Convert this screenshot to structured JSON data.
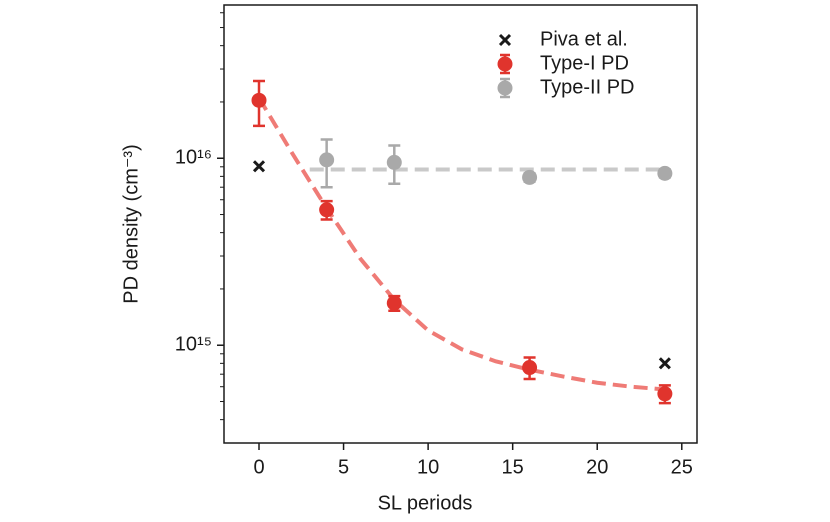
{
  "chart_data": {
    "type": "scatter",
    "xlabel": "SL periods",
    "ylabel": "PD density (cm⁻³)",
    "xlim": [
      -2.07,
      25.9
    ],
    "xticks": [
      0,
      5,
      10,
      15,
      20,
      25
    ],
    "ylim": [
      300000000000000.0,
      6.6e+16
    ],
    "yscale": "log",
    "yticks": [
      {
        "value": 1000000000000000.0,
        "label": "10¹⁵"
      },
      {
        "value": 1e+16,
        "label": "10¹⁶"
      }
    ],
    "legend": "upper right",
    "series": [
      {
        "name": "Piva et al.",
        "color": "#1a1a1a",
        "marker": "x",
        "x": [
          0,
          24
        ],
        "values": [
          9060000000000000.0,
          800000000000000.0
        ]
      },
      {
        "name": "Type-I PD",
        "color": "#e0342d",
        "marker": "o",
        "x": [
          0,
          4,
          8,
          16,
          24
        ],
        "values": [
          2.04e+16,
          5300000000000000.0,
          1680000000000000.0,
          760000000000000.0,
          550000000000000.0
        ],
        "errors": [
          5500000000000000.0,
          600000000000000.0,
          150000000000000.0,
          100000000000000.0,
          60000000000000.0
        ]
      },
      {
        "name": "Type-II PD",
        "color": "#a9a9a9",
        "marker": "o",
        "x": [
          4,
          8,
          16,
          24
        ],
        "values": [
          9800000000000000.0,
          9500000000000000.0,
          7900000000000000.0,
          8300000000000000.0
        ],
        "errors": [
          2800000000000000.0,
          2200000000000000.0,
          400000000000000.0,
          400000000000000.0
        ]
      }
    ],
    "fits": [
      {
        "color": "#ef7b76",
        "x": [
          0,
          2,
          4,
          6,
          8,
          10,
          12,
          14,
          16,
          18,
          20,
          22,
          24
        ],
        "values": [
          2.1e+16,
          1.05e+16,
          5400000000000000.0,
          2900000000000000.0,
          1750000000000000.0,
          1200000000000000.0,
          950000000000000.0,
          820000000000000.0,
          740000000000000.0,
          680000000000000.0,
          630000000000000.0,
          600000000000000.0,
          580000000000000.0
        ]
      },
      {
        "color": "#c9c9c9",
        "x": [
          3,
          24
        ],
        "values": [
          8700000000000000.0,
          8700000000000000.0
        ]
      }
    ]
  }
}
